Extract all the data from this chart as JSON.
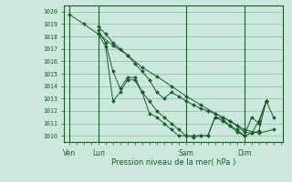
{
  "xlabel": "Pression niveau de la mer( hPa )",
  "bg_color": "#cce8dc",
  "grid_color": "#8abca8",
  "line_color": "#1a5c2a",
  "ylim": [
    1009.5,
    1020.5
  ],
  "xlim": [
    -4,
    176
  ],
  "xtick_labels": [
    "Ven",
    "Lun",
    "Sam",
    "Dim"
  ],
  "xtick_positions": [
    0,
    24,
    96,
    144
  ],
  "vline_positions": [
    0,
    24,
    96,
    144
  ],
  "series": [
    {
      "x": [
        0,
        12,
        24,
        36,
        48,
        60,
        72,
        84,
        96,
        108,
        120,
        132,
        144,
        156,
        168
      ],
      "y": [
        1019.8,
        1019.0,
        1018.2,
        1017.3,
        1016.5,
        1015.5,
        1014.8,
        1014.0,
        1013.2,
        1012.5,
        1011.8,
        1011.2,
        1010.5,
        1010.2,
        1010.5
      ]
    },
    {
      "x": [
        24,
        30,
        36,
        42,
        48,
        54,
        60,
        66,
        72,
        78,
        84,
        90,
        96,
        102,
        108,
        114,
        120,
        126,
        132,
        138,
        144,
        150,
        156,
        162,
        168
      ],
      "y": [
        1018.8,
        1018.2,
        1017.5,
        1017.0,
        1016.5,
        1015.8,
        1015.2,
        1014.5,
        1013.5,
        1013.0,
        1013.5,
        1013.2,
        1012.8,
        1012.5,
        1012.2,
        1012.0,
        1011.8,
        1011.5,
        1011.2,
        1010.8,
        1010.3,
        1010.2,
        1010.4,
        1012.8,
        1011.5
      ]
    },
    {
      "x": [
        24,
        30,
        36,
        42,
        48,
        54,
        60,
        66,
        72,
        78,
        84,
        90,
        96,
        102,
        108,
        114,
        120,
        126,
        132,
        138,
        144,
        150,
        156,
        162
      ],
      "y": [
        1018.5,
        1017.5,
        1015.2,
        1013.8,
        1014.7,
        1014.7,
        1013.5,
        1012.8,
        1012.0,
        1011.5,
        1011.0,
        1010.5,
        1010.0,
        1010.0,
        1010.0,
        1010.0,
        1011.5,
        1011.4,
        1010.8,
        1010.3,
        1010.0,
        1010.2,
        1011.2,
        1012.8
      ]
    },
    {
      "x": [
        24,
        30,
        36,
        42,
        48,
        54,
        60,
        66,
        72,
        78,
        84,
        90,
        96,
        102,
        108,
        114,
        120,
        126,
        132,
        138,
        144,
        150,
        156,
        162
      ],
      "y": [
        1018.2,
        1017.2,
        1012.8,
        1013.5,
        1014.5,
        1014.5,
        1013.5,
        1011.8,
        1011.5,
        1011.0,
        1010.5,
        1010.0,
        1010.0,
        1009.9,
        1010.0,
        1010.0,
        1011.5,
        1011.2,
        1010.8,
        1010.5,
        1010.0,
        1011.5,
        1011.0,
        1012.8
      ]
    }
  ]
}
